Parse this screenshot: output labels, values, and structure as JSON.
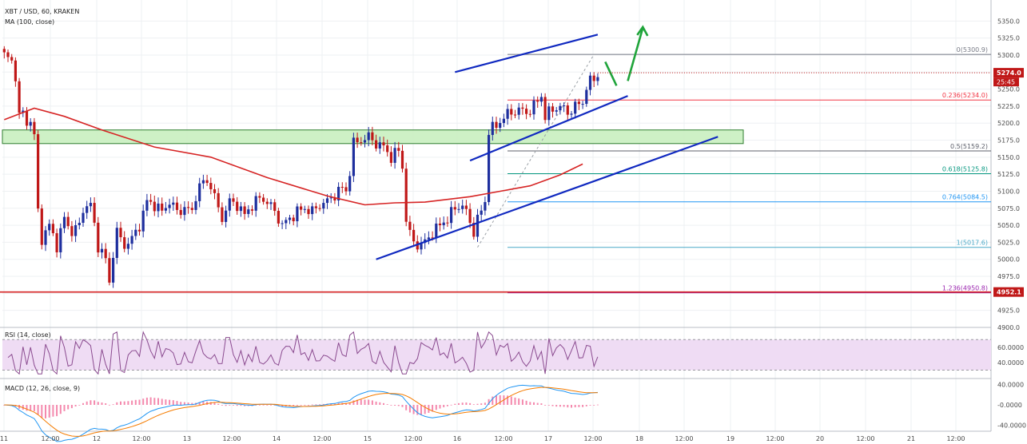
{
  "header": {
    "symbol": "XBT / USD, 60, KRAKEN",
    "ma_label": "MA (100, close)"
  },
  "rsi": {
    "label": "RSI (14, close)",
    "ticks": [
      "60.0000",
      "40.0000"
    ]
  },
  "macd": {
    "label": "MACD (12, 26, close, 9)",
    "ticks": [
      "40.0000",
      "-0.0000",
      "-40.0000"
    ]
  },
  "price_labels": {
    "current": "5274.0",
    "timer": "25:45",
    "support": "4952.1"
  },
  "colors": {
    "bull": "#1e2f9e",
    "bear": "#c01818",
    "ma": "#d62424",
    "channel": "#1029c0",
    "zone_fill": "#c9f0c0",
    "zone_border": "#2e7d2e",
    "support": "#d62424",
    "arrow": "#1fa43a",
    "rsi_line": "#8a4a8f",
    "rsi_band": "#efdcf4",
    "macd_line": "#2196f3",
    "signal_line": "#f57c00",
    "hist": "#f06292"
  },
  "chart_data": {
    "type": "candlestick",
    "title": "XBT / USD, 60, KRAKEN",
    "y_range": [
      4900,
      5375
    ],
    "y_ticks": [
      4900,
      4925,
      4950,
      4975,
      5000,
      5025,
      5050,
      5075,
      5100,
      5125,
      5150,
      5175,
      5200,
      5225,
      5250,
      5275,
      5300,
      5325,
      5350
    ],
    "x_labels": [
      "11",
      "12:00",
      "12",
      "12:00",
      "13",
      "12:00",
      "14",
      "12:00",
      "15",
      "12:00",
      "16",
      "12:00",
      "17",
      "12:00",
      "18",
      "12:00",
      "19",
      "12:00",
      "20",
      "12:00",
      "21",
      "12:00"
    ],
    "price_anchors": [
      [
        0,
        5300
      ],
      [
        2,
        5290
      ],
      [
        3,
        5270
      ],
      [
        4,
        5210
      ],
      [
        5,
        5215
      ],
      [
        6,
        5200
      ],
      [
        7,
        5205
      ],
      [
        8,
        5180
      ],
      [
        9,
        5070
      ],
      [
        10,
        5030
      ],
      [
        12,
        5050
      ],
      [
        14,
        5020
      ],
      [
        16,
        5060
      ],
      [
        18,
        5040
      ],
      [
        20,
        5050
      ],
      [
        21,
        5075
      ],
      [
        23,
        5080
      ],
      [
        25,
        5020
      ],
      [
        27,
        5000
      ],
      [
        28,
        4965
      ],
      [
        29,
        5010
      ],
      [
        30,
        5040
      ],
      [
        31,
        5030
      ],
      [
        32,
        5020
      ],
      [
        34,
        5030
      ],
      [
        36,
        5050
      ],
      [
        38,
        5085
      ],
      [
        40,
        5080
      ],
      [
        42,
        5070
      ],
      [
        44,
        5085
      ],
      [
        46,
        5070
      ],
      [
        48,
        5075
      ],
      [
        50,
        5070
      ],
      [
        51,
        5095
      ],
      [
        53,
        5115
      ],
      [
        55,
        5110
      ],
      [
        56,
        5090
      ],
      [
        58,
        5060
      ],
      [
        60,
        5085
      ],
      [
        62,
        5080
      ],
      [
        64,
        5065
      ],
      [
        66,
        5080
      ],
      [
        68,
        5090
      ],
      [
        70,
        5085
      ],
      [
        72,
        5070
      ],
      [
        74,
        5050
      ],
      [
        76,
        5060
      ],
      [
        78,
        5070
      ],
      [
        80,
        5075
      ],
      [
        82,
        5070
      ],
      [
        84,
        5080
      ],
      [
        86,
        5085
      ],
      [
        88,
        5095
      ],
      [
        90,
        5105
      ],
      [
        91,
        5100
      ],
      [
        92,
        5130
      ],
      [
        93,
        5170
      ],
      [
        95,
        5175
      ],
      [
        97,
        5180
      ],
      [
        99,
        5170
      ],
      [
        101,
        5165
      ],
      [
        103,
        5150
      ],
      [
        105,
        5160
      ],
      [
        106,
        5135
      ],
      [
        107,
        5060
      ],
      [
        108,
        5035
      ],
      [
        110,
        5020
      ],
      [
        112,
        5025
      ],
      [
        114,
        5040
      ],
      [
        116,
        5050
      ],
      [
        118,
        5060
      ],
      [
        120,
        5075
      ],
      [
        122,
        5080
      ],
      [
        124,
        5055
      ],
      [
        125,
        5040
      ],
      [
        126,
        5060
      ],
      [
        127,
        5070
      ],
      [
        128,
        5085
      ],
      [
        129,
        5190
      ],
      [
        131,
        5195
      ],
      [
        133,
        5210
      ],
      [
        135,
        5215
      ],
      [
        137,
        5220
      ],
      [
        139,
        5215
      ],
      [
        141,
        5225
      ],
      [
        143,
        5240
      ],
      [
        144,
        5210
      ],
      [
        146,
        5220
      ],
      [
        148,
        5225
      ],
      [
        150,
        5215
      ],
      [
        152,
        5225
      ],
      [
        154,
        5230
      ],
      [
        155,
        5255
      ],
      [
        157,
        5265
      ],
      [
        158,
        5270
      ]
    ],
    "ma_anchors": [
      [
        0,
        5205
      ],
      [
        8,
        5222
      ],
      [
        16,
        5210
      ],
      [
        26,
        5190
      ],
      [
        40,
        5165
      ],
      [
        55,
        5150
      ],
      [
        70,
        5120
      ],
      [
        86,
        5093
      ],
      [
        96,
        5080
      ],
      [
        104,
        5083
      ],
      [
        112,
        5084
      ],
      [
        124,
        5092
      ],
      [
        132,
        5100
      ],
      [
        140,
        5108
      ],
      [
        148,
        5124
      ],
      [
        154,
        5140
      ]
    ],
    "fibonacci": [
      {
        "ratio": "0",
        "price": 5300.9,
        "label": "0(5300.9)",
        "color": "#787b86"
      },
      {
        "ratio": "0.236",
        "price": 5234.0,
        "label": "0.236(5234.0)",
        "color": "#f23645"
      },
      {
        "ratio": "0.5",
        "price": 5159.2,
        "label": "0.5(5159.2)",
        "color": "#5d606b"
      },
      {
        "ratio": "0.618",
        "price": 5125.8,
        "label": "0.618(5125.8)",
        "color": "#089981"
      },
      {
        "ratio": "0.764",
        "price": 5084.5,
        "label": "0.764(5084.5)",
        "color": "#2196f3"
      },
      {
        "ratio": "1",
        "price": 5017.6,
        "label": "1(5017.6)",
        "color": "#4aa8c7"
      },
      {
        "ratio": "1.236",
        "price": 4950.8,
        "label": "1.236(4950.8)",
        "color": "#9c27b0"
      }
    ],
    "resistance_zone": [
      5170,
      5190
    ],
    "support_level": 4952,
    "channels": [
      {
        "from": [
          99,
          5000
        ],
        "to": [
          190,
          5180
        ]
      },
      {
        "from": [
          124,
          5145
        ],
        "to": [
          166,
          5240
        ]
      },
      {
        "from": [
          120,
          5275
        ],
        "to": [
          158,
          5330
        ]
      }
    ]
  }
}
